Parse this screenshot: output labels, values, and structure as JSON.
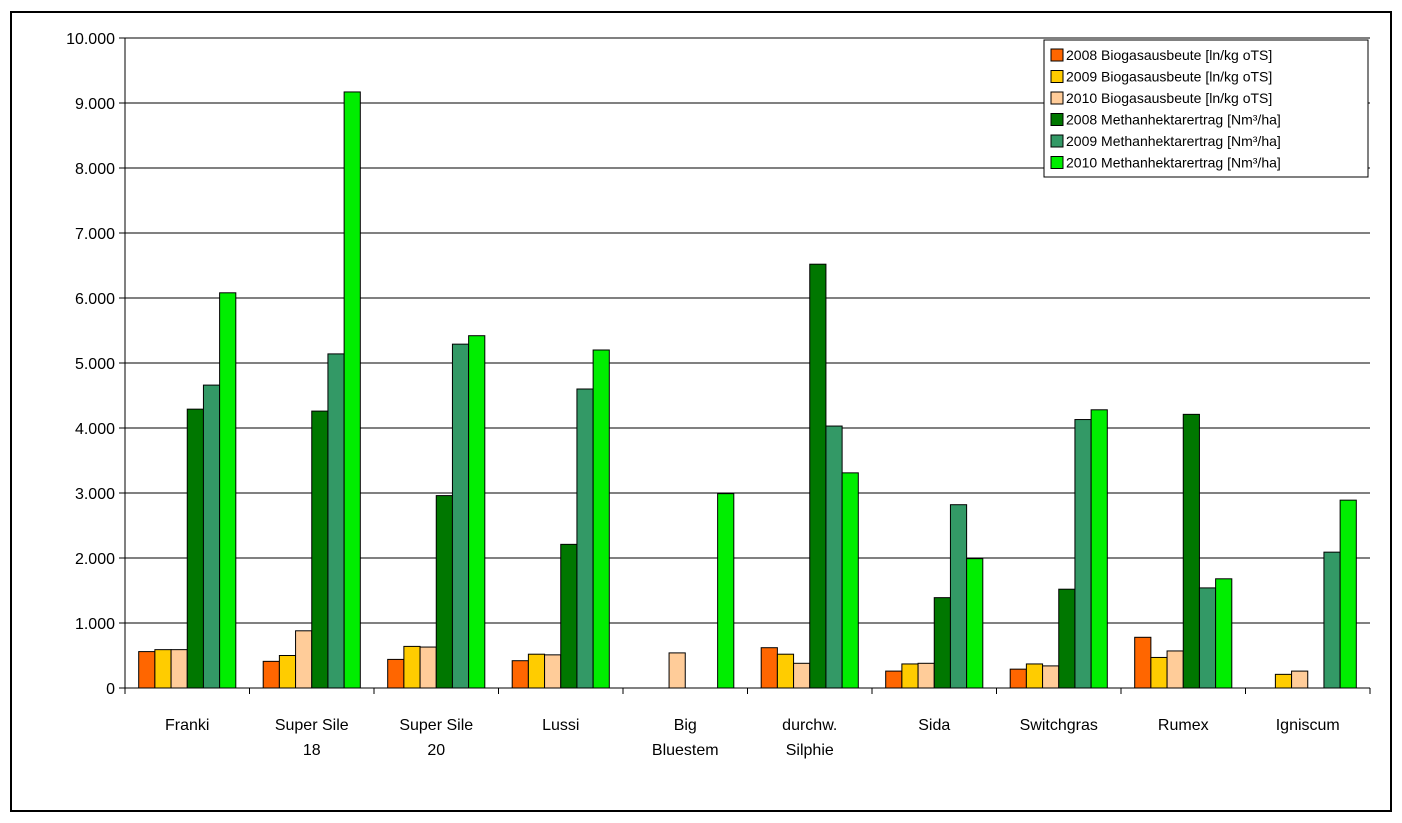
{
  "chart_data": {
    "type": "bar",
    "categories": [
      [
        "Franki"
      ],
      [
        "Super Sile",
        "18"
      ],
      [
        "Super Sile",
        "20"
      ],
      [
        "Lussi"
      ],
      [
        "Big",
        "Bluestem"
      ],
      [
        "durchw.",
        "Silphie"
      ],
      [
        "Sida"
      ],
      [
        "Switchgras"
      ],
      [
        "Rumex"
      ],
      [
        "Igniscum"
      ]
    ],
    "series": [
      {
        "name": "2008 Biogasausbeute [ln/kg oTS]",
        "color": "#ff6600",
        "values": [
          560,
          410,
          440,
          420,
          null,
          620,
          260,
          290,
          780,
          null
        ]
      },
      {
        "name": "2009 Biogasausbeute [ln/kg oTS]",
        "color": "#ffcc00",
        "values": [
          590,
          500,
          640,
          520,
          null,
          520,
          370,
          370,
          470,
          210
        ]
      },
      {
        "name": "2010 Biogasausbeute [ln/kg oTS]",
        "color": "#ffcc99",
        "values": [
          590,
          880,
          630,
          510,
          540,
          380,
          380,
          340,
          570,
          260
        ]
      },
      {
        "name": "2008 Methanhektarertrag [Nm³/ha]",
        "color": "#007700",
        "values": [
          4290,
          4260,
          2960,
          2210,
          null,
          6520,
          1390,
          1520,
          4210,
          null
        ]
      },
      {
        "name": "2009 Methanhektarertrag [Nm³/ha]",
        "color": "#339966",
        "values": [
          4660,
          5140,
          5290,
          4600,
          null,
          4030,
          2820,
          4130,
          1540,
          2090
        ]
      },
      {
        "name": "2010 Methanhektarertrag [Nm³/ha]",
        "color": "#00ee00",
        "values": [
          6080,
          9170,
          5420,
          5200,
          2990,
          3310,
          1990,
          4280,
          1680,
          2890
        ]
      }
    ],
    "y_ticks": [
      "0",
      "1.000",
      "2.000",
      "3.000",
      "4.000",
      "5.000",
      "6.000",
      "7.000",
      "8.000",
      "9.000",
      "10.000"
    ],
    "ylim": [
      0,
      10000
    ],
    "grid": true,
    "legend_position": "top-right",
    "title": "",
    "xlabel": "",
    "ylabel": ""
  }
}
